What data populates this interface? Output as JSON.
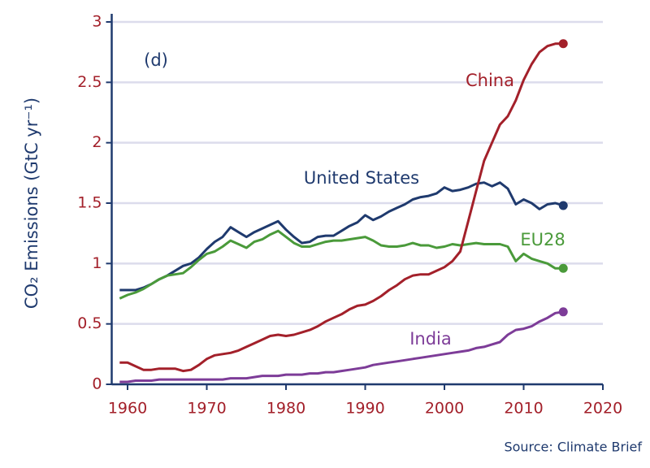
{
  "chart_data": {
    "type": "line",
    "annotation": "(d)",
    "y_label": "CO₂ Emissions (GtC yr⁻¹)",
    "source": "Source: Climate Brief",
    "xlim": [
      1958,
      2020
    ],
    "xticks": [
      1960,
      1970,
      1980,
      1990,
      2000,
      2010,
      2020
    ],
    "ylim": [
      0,
      3
    ],
    "yticks": [
      0,
      0.5,
      1,
      1.5,
      2,
      2.5,
      3
    ],
    "grid": true,
    "x": [
      1959,
      1960,
      1961,
      1962,
      1963,
      1964,
      1965,
      1966,
      1967,
      1968,
      1969,
      1970,
      1971,
      1972,
      1973,
      1974,
      1975,
      1976,
      1977,
      1978,
      1979,
      1980,
      1981,
      1982,
      1983,
      1984,
      1985,
      1986,
      1987,
      1988,
      1989,
      1990,
      1991,
      1992,
      1993,
      1994,
      1995,
      1996,
      1997,
      1998,
      1999,
      2000,
      2001,
      2002,
      2003,
      2004,
      2005,
      2006,
      2007,
      2008,
      2009,
      2010,
      2011,
      2012,
      2013,
      2014,
      2015
    ],
    "series": [
      {
        "name": "United States",
        "color": "#1f3a6e",
        "values": [
          0.78,
          0.78,
          0.78,
          0.8,
          0.83,
          0.87,
          0.9,
          0.94,
          0.98,
          1.0,
          1.05,
          1.12,
          1.18,
          1.22,
          1.3,
          1.26,
          1.22,
          1.26,
          1.29,
          1.32,
          1.35,
          1.28,
          1.22,
          1.17,
          1.18,
          1.22,
          1.23,
          1.23,
          1.27,
          1.31,
          1.34,
          1.4,
          1.36,
          1.39,
          1.43,
          1.46,
          1.49,
          1.53,
          1.55,
          1.56,
          1.58,
          1.63,
          1.6,
          1.61,
          1.63,
          1.66,
          1.67,
          1.64,
          1.67,
          1.62,
          1.49,
          1.53,
          1.5,
          1.45,
          1.49,
          1.5,
          1.48
        ]
      },
      {
        "name": "EU28",
        "color": "#4a9a3a",
        "values": [
          0.71,
          0.74,
          0.76,
          0.79,
          0.83,
          0.87,
          0.9,
          0.91,
          0.92,
          0.97,
          1.03,
          1.08,
          1.1,
          1.14,
          1.19,
          1.16,
          1.13,
          1.18,
          1.2,
          1.24,
          1.27,
          1.22,
          1.17,
          1.14,
          1.14,
          1.16,
          1.18,
          1.19,
          1.19,
          1.2,
          1.21,
          1.22,
          1.19,
          1.15,
          1.14,
          1.14,
          1.15,
          1.17,
          1.15,
          1.15,
          1.13,
          1.14,
          1.16,
          1.15,
          1.16,
          1.17,
          1.16,
          1.16,
          1.16,
          1.14,
          1.02,
          1.08,
          1.04,
          1.02,
          1.0,
          0.96,
          0.96
        ]
      },
      {
        "name": "China",
        "color": "#a3202a",
        "values": [
          0.18,
          0.18,
          0.15,
          0.12,
          0.12,
          0.13,
          0.13,
          0.13,
          0.11,
          0.12,
          0.16,
          0.21,
          0.24,
          0.25,
          0.26,
          0.28,
          0.31,
          0.34,
          0.37,
          0.4,
          0.41,
          0.4,
          0.41,
          0.43,
          0.45,
          0.48,
          0.52,
          0.55,
          0.58,
          0.62,
          0.65,
          0.66,
          0.69,
          0.73,
          0.78,
          0.82,
          0.87,
          0.9,
          0.91,
          0.91,
          0.94,
          0.97,
          1.02,
          1.1,
          1.35,
          1.6,
          1.85,
          2.0,
          2.15,
          2.22,
          2.35,
          2.52,
          2.65,
          2.75,
          2.8,
          2.82,
          2.82
        ]
      },
      {
        "name": "India",
        "color": "#7d3c98",
        "values": [
          0.02,
          0.02,
          0.03,
          0.03,
          0.03,
          0.04,
          0.04,
          0.04,
          0.04,
          0.04,
          0.04,
          0.04,
          0.04,
          0.04,
          0.05,
          0.05,
          0.05,
          0.06,
          0.07,
          0.07,
          0.07,
          0.08,
          0.08,
          0.08,
          0.09,
          0.09,
          0.1,
          0.1,
          0.11,
          0.12,
          0.13,
          0.14,
          0.16,
          0.17,
          0.18,
          0.19,
          0.2,
          0.21,
          0.22,
          0.23,
          0.24,
          0.25,
          0.26,
          0.27,
          0.28,
          0.3,
          0.31,
          0.33,
          0.35,
          0.41,
          0.45,
          0.46,
          0.48,
          0.52,
          0.55,
          0.59,
          0.6
        ]
      }
    ]
  }
}
